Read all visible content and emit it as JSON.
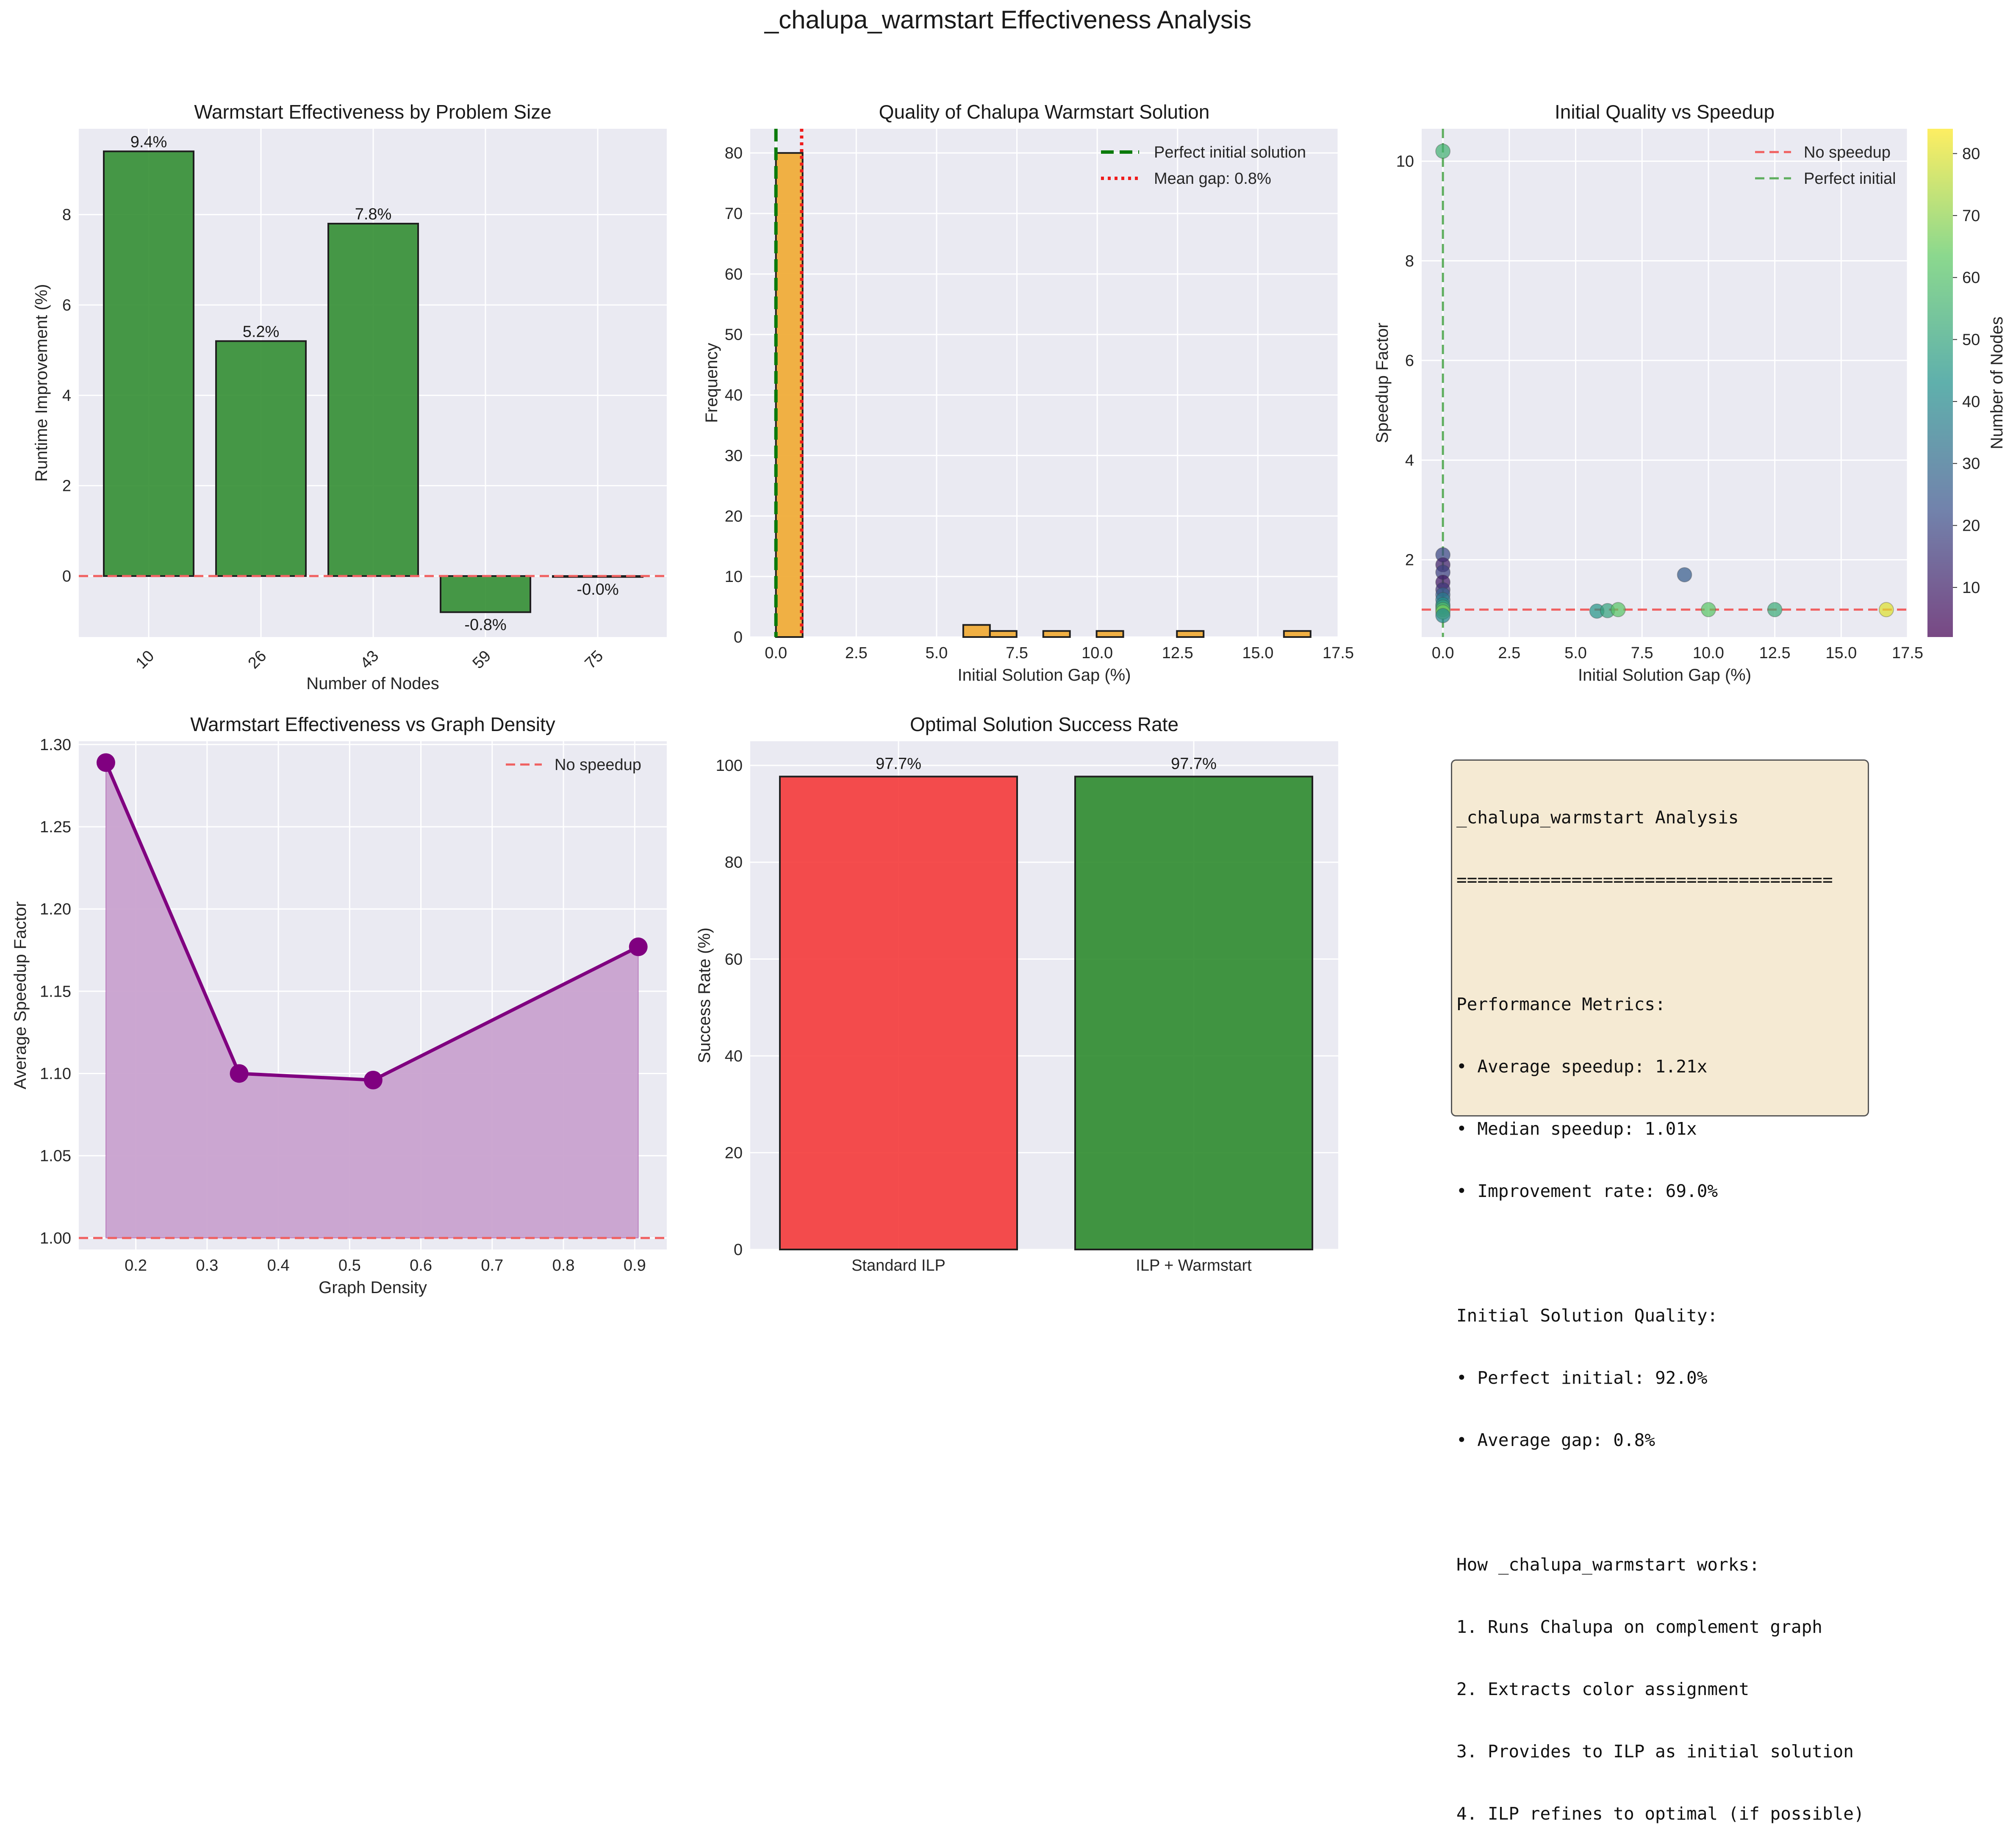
{
  "suptitle": "_chalupa_warmstart Effectiveness Analysis",
  "colors": {
    "panel_bg": "#eaeaf2",
    "grid": "#ffffff",
    "green": "#2e8b2e",
    "orange": "#f0ad3a",
    "red": "#f43a3a",
    "purple": "#800080",
    "purple_fill": "#c9a2cf",
    "ref_red": "#f06060",
    "ref_green": "#5fae5f"
  },
  "chart_data": [
    {
      "id": "bar_nodes",
      "type": "bar",
      "title": "Warmstart Effectiveness by Problem Size",
      "xlabel": "Number of Nodes",
      "ylabel": "Runtime Improvement (%)",
      "categories": [
        "10",
        "26",
        "43",
        "59",
        "75"
      ],
      "values": [
        9.4,
        5.2,
        7.8,
        -0.8,
        -0.02
      ],
      "data_labels": [
        "9.4%",
        "5.2%",
        "7.8%",
        "-0.8%",
        "-0.0%"
      ],
      "ylim": [
        -1.35,
        9.9
      ],
      "yticks": [
        0,
        2,
        4,
        6,
        8
      ],
      "reference_lines": [
        {
          "y": 0,
          "style": "dashed",
          "color": "red"
        }
      ],
      "grid": true
    },
    {
      "id": "hist_gap",
      "type": "histogram",
      "title": "Quality of Chalupa Warmstart Solution",
      "xlabel": "Initial Solution Gap (%)",
      "ylabel": "Frequency",
      "bins": [
        {
          "x0": 0.0,
          "x1": 0.83,
          "count": 80
        },
        {
          "x0": 5.83,
          "x1": 6.66,
          "count": 2
        },
        {
          "x0": 6.66,
          "x1": 7.49,
          "count": 1
        },
        {
          "x0": 8.32,
          "x1": 9.15,
          "count": 1
        },
        {
          "x0": 9.98,
          "x1": 10.81,
          "count": 1
        },
        {
          "x0": 12.48,
          "x1": 13.31,
          "count": 1
        },
        {
          "x0": 15.81,
          "x1": 16.64,
          "count": 1
        }
      ],
      "xlim": [
        -0.8,
        17.5
      ],
      "ylim": [
        0,
        84
      ],
      "xticks": [
        0.0,
        2.5,
        5.0,
        7.5,
        10.0,
        12.5,
        15.0,
        17.5
      ],
      "xtick_labels": [
        "0.0",
        "2.5",
        "5.0",
        "7.5",
        "10.0",
        "12.5",
        "15.0",
        "17.5"
      ],
      "yticks": [
        0,
        10,
        20,
        30,
        40,
        50,
        60,
        70,
        80
      ],
      "vlines": [
        {
          "x": 0.0,
          "label": "Perfect initial solution",
          "style": "dashed",
          "color": "green"
        },
        {
          "x": 0.8,
          "label": "Mean gap: 0.8%",
          "style": "dotted",
          "color": "red"
        }
      ],
      "legend": "upper-right",
      "grid": true
    },
    {
      "id": "scatter_quality",
      "type": "scatter",
      "title": "Initial Quality vs Speedup",
      "xlabel": "Initial Solution Gap (%)",
      "ylabel": "Speedup Factor",
      "points": [
        {
          "x": 0.0,
          "y": 10.2,
          "nodes": 55
        },
        {
          "x": 0.0,
          "y": 2.1,
          "nodes": 20
        },
        {
          "x": 0.0,
          "y": 1.9,
          "nodes": 10
        },
        {
          "x": 0.0,
          "y": 1.75,
          "nodes": 18
        },
        {
          "x": 0.0,
          "y": 1.55,
          "nodes": 8
        },
        {
          "x": 0.0,
          "y": 1.4,
          "nodes": 15
        },
        {
          "x": 0.0,
          "y": 1.3,
          "nodes": 26
        },
        {
          "x": 0.0,
          "y": 1.2,
          "nodes": 35
        },
        {
          "x": 0.0,
          "y": 1.1,
          "nodes": 43
        },
        {
          "x": 0.0,
          "y": 1.05,
          "nodes": 50
        },
        {
          "x": 0.0,
          "y": 1.0,
          "nodes": 59
        },
        {
          "x": 0.0,
          "y": 0.95,
          "nodes": 66
        },
        {
          "x": 0.0,
          "y": 0.88,
          "nodes": 40
        },
        {
          "x": 5.8,
          "y": 0.97,
          "nodes": 45
        },
        {
          "x": 6.2,
          "y": 0.98,
          "nodes": 50
        },
        {
          "x": 6.6,
          "y": 1.0,
          "nodes": 62
        },
        {
          "x": 9.1,
          "y": 1.7,
          "nodes": 26
        },
        {
          "x": 10.0,
          "y": 1.0,
          "nodes": 62
        },
        {
          "x": 12.5,
          "y": 1.0,
          "nodes": 53
        },
        {
          "x": 16.7,
          "y": 1.0,
          "nodes": 80
        }
      ],
      "xlim": [
        -0.8,
        17.5
      ],
      "ylim": [
        0.45,
        10.65
      ],
      "xticks": [
        0.0,
        2.5,
        5.0,
        7.5,
        10.0,
        12.5,
        15.0,
        17.5
      ],
      "xtick_labels": [
        "0.0",
        "2.5",
        "5.0",
        "7.5",
        "10.0",
        "12.5",
        "15.0",
        "17.5"
      ],
      "yticks": [
        2,
        4,
        6,
        8,
        10
      ],
      "reference_lines": [
        {
          "y": 1,
          "label": "No speedup",
          "style": "dashed",
          "color": "red"
        },
        {
          "x": 0,
          "label": "Perfect initial",
          "style": "dashed",
          "color": "green"
        }
      ],
      "colorbar": {
        "label": "Number of Nodes",
        "min": 2,
        "max": 84,
        "ticks": [
          10,
          20,
          30,
          40,
          50,
          60,
          70,
          80
        ],
        "colormap": "viridis"
      },
      "legend": "upper-right",
      "grid": true
    },
    {
      "id": "line_density",
      "type": "area",
      "title": "Warmstart Effectiveness vs Graph Density",
      "xlabel": "Graph Density",
      "ylabel": "Average Speedup Factor",
      "x": [
        0.158,
        0.345,
        0.533,
        0.905
      ],
      "y": [
        1.289,
        1.1,
        1.096,
        1.177
      ],
      "xlim": [
        0.12,
        0.945
      ],
      "ylim": [
        0.993,
        1.302
      ],
      "xticks": [
        0.2,
        0.3,
        0.4,
        0.5,
        0.6,
        0.7,
        0.8,
        0.9
      ],
      "yticks": [
        1.0,
        1.05,
        1.1,
        1.15,
        1.2,
        1.25,
        1.3
      ],
      "ytick_labels": [
        "1.00",
        "1.05",
        "1.10",
        "1.15",
        "1.20",
        "1.25",
        "1.30"
      ],
      "reference_lines": [
        {
          "y": 1,
          "label": "No speedup",
          "style": "dashed",
          "color": "red"
        }
      ],
      "legend": "upper-right",
      "grid": true
    },
    {
      "id": "bar_success",
      "type": "bar",
      "title": "Optimal Solution Success Rate",
      "ylabel": "Success Rate (%)",
      "categories": [
        "Standard ILP",
        "ILP + Warmstart"
      ],
      "values": [
        97.7,
        97.7
      ],
      "data_labels": [
        "97.7%",
        "97.7%"
      ],
      "bar_colors": [
        "red",
        "green"
      ],
      "ylim": [
        0,
        105
      ],
      "yticks": [
        0,
        20,
        40,
        60,
        80,
        100
      ],
      "grid": true
    }
  ],
  "summary_box": {
    "lines": [
      "_chalupa_warmstart Analysis",
      "====================================",
      "",
      "Performance Metrics:",
      "• Average speedup: 1.21x",
      "• Median speedup: 1.01x",
      "• Improvement rate: 69.0%",
      "",
      "Initial Solution Quality:",
      "• Perfect initial: 92.0%",
      "• Average gap: 0.8%",
      "",
      "How _chalupa_warmstart works:",
      "1. Runs Chalupa on complement graph",
      "2. Extracts color assignment",
      "3. Provides to ILP as initial solution",
      "4. ILP refines to optimal (if possible)"
    ]
  }
}
